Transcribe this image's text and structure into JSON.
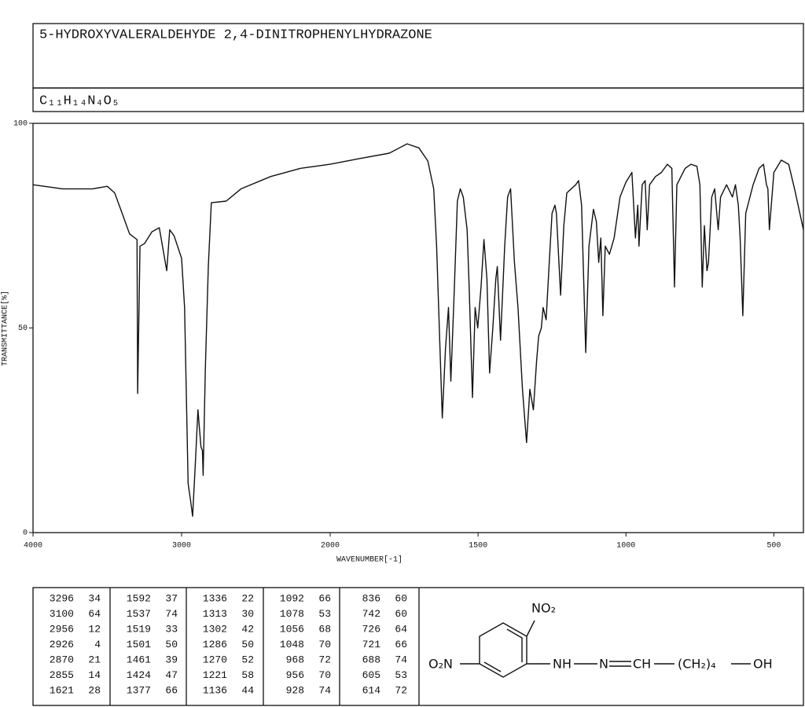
{
  "header": {
    "title": "5-HYDROXYVALERALDEHYDE 2,4-DINITROPHENYLHYDRAZONE",
    "formula": "C₁₁H₁₄N₄O₅"
  },
  "chart_data": {
    "type": "line",
    "x_label": "WAVENUMBER[-1]",
    "y_label": "TRANSMITTANCE[%]",
    "xlim": [
      4000,
      400
    ],
    "x_break": 2000,
    "xticks": [
      4000,
      3000,
      2000,
      1500,
      1000,
      500
    ],
    "ylim": [
      0,
      100
    ],
    "yticks": [
      0,
      50,
      100
    ],
    "x": [
      4000,
      3800,
      3600,
      3500,
      3450,
      3400,
      3350,
      3300,
      3296,
      3280,
      3250,
      3200,
      3150,
      3100,
      3080,
      3050,
      3000,
      2980,
      2956,
      2940,
      2926,
      2910,
      2890,
      2870,
      2860,
      2855,
      2840,
      2820,
      2800,
      2700,
      2600,
      2400,
      2200,
      2000,
      1900,
      1800,
      1740,
      1700,
      1670,
      1650,
      1640,
      1621,
      1610,
      1600,
      1592,
      1580,
      1570,
      1560,
      1550,
      1537,
      1530,
      1519,
      1510,
      1501,
      1490,
      1480,
      1470,
      1461,
      1450,
      1440,
      1435,
      1424,
      1410,
      1400,
      1390,
      1377,
      1365,
      1350,
      1336,
      1325,
      1313,
      1302,
      1295,
      1286,
      1280,
      1270,
      1260,
      1250,
      1240,
      1235,
      1221,
      1210,
      1200,
      1170,
      1160,
      1150,
      1136,
      1125,
      1110,
      1100,
      1092,
      1085,
      1078,
      1070,
      1056,
      1048,
      1040,
      1020,
      1000,
      980,
      968,
      960,
      956,
      945,
      935,
      928,
      920,
      900,
      880,
      860,
      845,
      836,
      828,
      800,
      780,
      760,
      750,
      742,
      735,
      726,
      721,
      710,
      700,
      688,
      680,
      660,
      640,
      630,
      620,
      614,
      605,
      595,
      570,
      550,
      535,
      525,
      520,
      515,
      500,
      475,
      450,
      430,
      400
    ],
    "series": [
      {
        "color": "#111111",
        "values": [
          85,
          84,
          84,
          84.6,
          83,
          78,
          73,
          71.6,
          34,
          70,
          70.6,
          73.5,
          74.5,
          64,
          74,
          72.5,
          67,
          55,
          12,
          8,
          4,
          15,
          30,
          21,
          20,
          14,
          40,
          65,
          80.6,
          81,
          84,
          87,
          89,
          90,
          91.4,
          92.7,
          95,
          94,
          90.8,
          84,
          70,
          28,
          45,
          55,
          37,
          60,
          81,
          84,
          82,
          74,
          60,
          33,
          55,
          50,
          60,
          71.6,
          62,
          39,
          50,
          62,
          65,
          47,
          70,
          82,
          84,
          66,
          55,
          35,
          22,
          35,
          30,
          42,
          48,
          50,
          55,
          52,
          65,
          78,
          80,
          78,
          58,
          75,
          83,
          85,
          86,
          80,
          44,
          70,
          79,
          76,
          66,
          72,
          53,
          70,
          68,
          70,
          72,
          82,
          85.6,
          88,
          72,
          80,
          70,
          85,
          86,
          74,
          85,
          87,
          88,
          90,
          89,
          60,
          85,
          89,
          90,
          89.5,
          85,
          60,
          75,
          64,
          66,
          82,
          84,
          74,
          82,
          85,
          82,
          85,
          80,
          72,
          53,
          78,
          85,
          89,
          90,
          85,
          84,
          74,
          88,
          91,
          90,
          84,
          74
        ]
      }
    ]
  },
  "peak_table": {
    "columns": [
      [
        [
          3296,
          34
        ],
        [
          3100,
          64
        ],
        [
          2956,
          12
        ],
        [
          2926,
          4
        ],
        [
          2870,
          21
        ],
        [
          2855,
          14
        ],
        [
          1621,
          28
        ]
      ],
      [
        [
          1592,
          37
        ],
        [
          1537,
          74
        ],
        [
          1519,
          33
        ],
        [
          1501,
          50
        ],
        [
          1461,
          39
        ],
        [
          1424,
          47
        ],
        [
          1377,
          66
        ]
      ],
      [
        [
          1336,
          22
        ],
        [
          1313,
          30
        ],
        [
          1302,
          42
        ],
        [
          1286,
          50
        ],
        [
          1270,
          52
        ],
        [
          1221,
          58
        ],
        [
          1136,
          44
        ]
      ],
      [
        [
          1092,
          66
        ],
        [
          1078,
          53
        ],
        [
          1056,
          68
        ],
        [
          1048,
          70
        ],
        [
          968,
          72
        ],
        [
          956,
          70
        ],
        [
          928,
          74
        ]
      ],
      [
        [
          836,
          60
        ],
        [
          742,
          60
        ],
        [
          726,
          64
        ],
        [
          721,
          66
        ],
        [
          688,
          74
        ],
        [
          605,
          53
        ],
        [
          614,
          72
        ]
      ]
    ]
  },
  "structure": {
    "nitro_top": "NO₂",
    "nitro_left": "O₂N",
    "nh": "NH",
    "n": "N",
    "ch": "CH",
    "chain": "(CH₂)₄",
    "oh": "OH"
  }
}
